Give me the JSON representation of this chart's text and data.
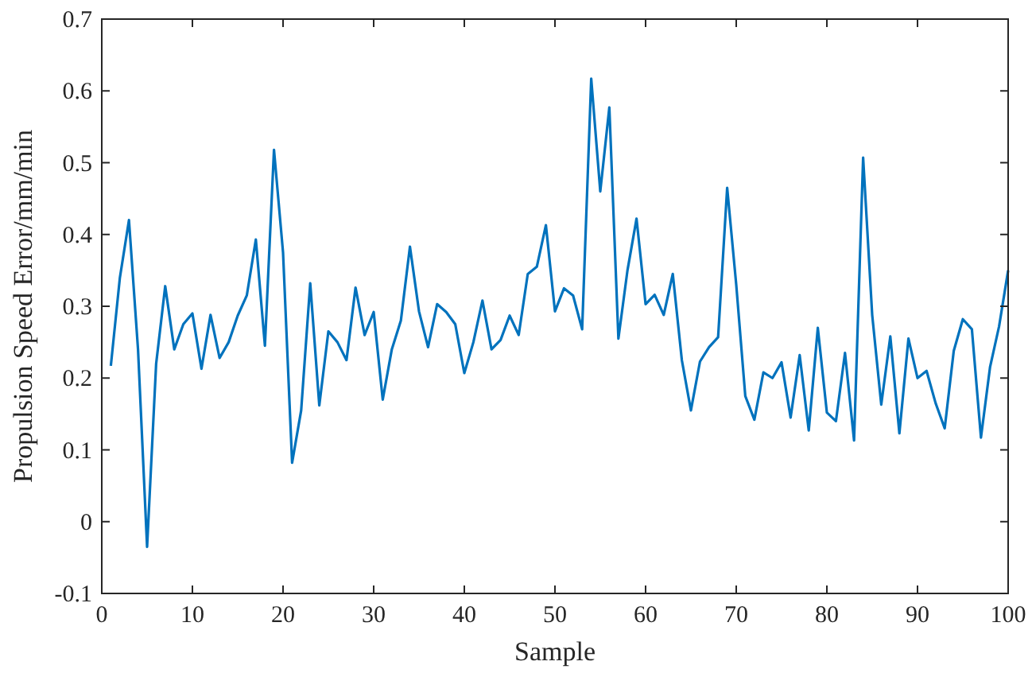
{
  "chart_data": {
    "type": "line",
    "xlabel": "Sample",
    "ylabel": "Propulsion Speed Error/mm/min",
    "x": [
      1,
      2,
      3,
      4,
      5,
      6,
      7,
      8,
      9,
      10,
      11,
      12,
      13,
      14,
      15,
      16,
      17,
      18,
      19,
      20,
      21,
      22,
      23,
      24,
      25,
      26,
      27,
      28,
      29,
      30,
      31,
      32,
      33,
      34,
      35,
      36,
      37,
      38,
      39,
      40,
      41,
      42,
      43,
      44,
      45,
      46,
      47,
      48,
      49,
      50,
      51,
      52,
      53,
      54,
      55,
      56,
      57,
      58,
      59,
      60,
      61,
      62,
      63,
      64,
      65,
      66,
      67,
      68,
      69,
      70,
      71,
      72,
      73,
      74,
      75,
      76,
      77,
      78,
      79,
      80,
      81,
      82,
      83,
      84,
      85,
      86,
      87,
      88,
      89,
      90,
      91,
      92,
      93,
      94,
      95,
      96,
      97,
      98,
      99,
      100
    ],
    "series": [
      {
        "color": "#0072bd",
        "values": [
          0.217,
          0.34,
          0.42,
          0.24,
          -0.035,
          0.22,
          0.328,
          0.24,
          0.275,
          0.29,
          0.213,
          0.288,
          0.228,
          0.25,
          0.287,
          0.315,
          0.393,
          0.245,
          0.518,
          0.375,
          0.082,
          0.155,
          0.332,
          0.162,
          0.265,
          0.25,
          0.225,
          0.326,
          0.26,
          0.292,
          0.17,
          0.24,
          0.28,
          0.383,
          0.293,
          0.243,
          0.303,
          0.292,
          0.275,
          0.207,
          0.25,
          0.308,
          0.24,
          0.253,
          0.287,
          0.26,
          0.345,
          0.355,
          0.413,
          0.293,
          0.325,
          0.315,
          0.268,
          0.617,
          0.46,
          0.577,
          0.255,
          0.35,
          0.422,
          0.303,
          0.316,
          0.288,
          0.345,
          0.225,
          0.155,
          0.223,
          0.243,
          0.257,
          0.465,
          0.33,
          0.175,
          0.142,
          0.208,
          0.2,
          0.222,
          0.145,
          0.232,
          0.127,
          0.27,
          0.152,
          0.14,
          0.235,
          0.113,
          0.507,
          0.288,
          0.163,
          0.258,
          0.123,
          0.255,
          0.2,
          0.21,
          0.165,
          0.13,
          0.238,
          0.282,
          0.268,
          0.117,
          0.215,
          0.272,
          0.35
        ]
      }
    ],
    "xlim": [
      0,
      100
    ],
    "xticks": [
      0,
      10,
      20,
      30,
      40,
      50,
      60,
      70,
      80,
      90,
      100
    ],
    "ylim": [
      -0.1,
      0.7
    ],
    "yticks": [
      -0.1,
      0,
      0.1,
      0.2,
      0.3,
      0.4,
      0.5,
      0.6,
      0.7
    ],
    "grid": false,
    "marker": "none",
    "line_style": "solid"
  }
}
